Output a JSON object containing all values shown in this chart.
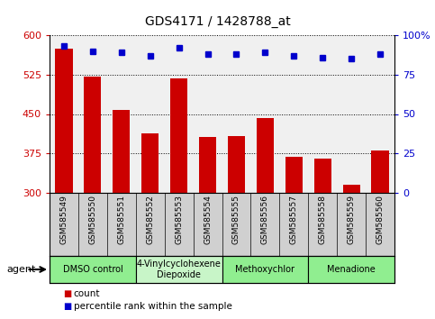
{
  "title": "GDS4171 / 1428788_at",
  "samples": [
    "GSM585549",
    "GSM585550",
    "GSM585551",
    "GSM585552",
    "GSM585553",
    "GSM585554",
    "GSM585555",
    "GSM585556",
    "GSM585557",
    "GSM585558",
    "GSM585559",
    "GSM585560"
  ],
  "counts": [
    575,
    522,
    457,
    413,
    518,
    407,
    408,
    443,
    368,
    366,
    315,
    380
  ],
  "percentile_ranks": [
    93,
    90,
    89,
    87,
    92,
    88,
    88,
    89,
    87,
    86,
    85,
    88
  ],
  "ylim_left": [
    300,
    600
  ],
  "ylim_right": [
    0,
    100
  ],
  "yticks_left": [
    300,
    375,
    450,
    525,
    600
  ],
  "yticks_right": [
    0,
    25,
    50,
    75,
    100
  ],
  "bar_color": "#cc0000",
  "dot_color": "#0000cc",
  "agent_groups": [
    {
      "label": "DMSO control",
      "start": 0,
      "end": 2,
      "color": "#90ee90"
    },
    {
      "label": "4-Vinylcyclohexene\nDiepoxide",
      "start": 3,
      "end": 5,
      "color": "#c8f5c8"
    },
    {
      "label": "Methoxychlor",
      "start": 6,
      "end": 8,
      "color": "#90ee90"
    },
    {
      "label": "Menadione",
      "start": 9,
      "end": 11,
      "color": "#90ee90"
    }
  ],
  "legend_count_label": "count",
  "legend_pct_label": "percentile rank within the sample",
  "agent_label": "agent",
  "plot_bg": "#f0f0f0",
  "xlabel_bg": "#d0d0d0",
  "tick_color_left": "#cc0000",
  "tick_color_right": "#0000cc"
}
